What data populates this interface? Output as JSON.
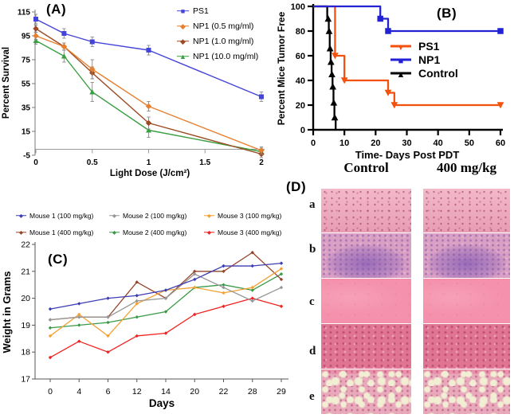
{
  "panel_labels": {
    "a": "(A)",
    "b": "(B)",
    "c": "(C)",
    "d": "(D)"
  },
  "chart_data": [
    {
      "id": "A",
      "type": "line",
      "xlabel": "Light Dose (J/cm²)",
      "ylabel": "Percent Survival",
      "x": [
        0,
        0.25,
        0.5,
        1,
        2
      ],
      "xticks": [
        0,
        0.5,
        1,
        1.5,
        2
      ],
      "xtick_labels": [
        "0",
        "0.5",
        "1",
        "1.5",
        "2"
      ],
      "yticks": [
        -5,
        15,
        35,
        55,
        75,
        95,
        115
      ],
      "xlim": [
        0,
        2
      ],
      "ylim": [
        -5,
        115
      ],
      "legend_position": "top-right",
      "grid": false,
      "series": [
        {
          "name": "PS1",
          "color": "#4444d8",
          "marker": "square",
          "values": [
            109,
            97,
            90,
            83,
            44
          ],
          "err": [
            4,
            4,
            4,
            4,
            4
          ]
        },
        {
          "name": "NP1 (0.5 mg/ml)",
          "color": "#e87f2e",
          "marker": "diamond",
          "values": [
            95,
            86,
            67,
            36,
            -1
          ],
          "err": [
            3,
            3,
            8,
            4,
            3
          ]
        },
        {
          "name": "NP1 (1.0 mg/ml)",
          "color": "#9c4a22",
          "marker": "diamond",
          "values": [
            101,
            86,
            64,
            22,
            -4
          ],
          "err": [
            3,
            3,
            5,
            5,
            3
          ]
        },
        {
          "name": "NP1 (10.0 mg/ml)",
          "color": "#3a9e42",
          "marker": "tri-up",
          "values": [
            91,
            78,
            48,
            16,
            -2
          ],
          "err": [
            3,
            5,
            8,
            6,
            3
          ]
        }
      ]
    },
    {
      "id": "B",
      "type": "step",
      "xlabel": "Time- Days Post PDT",
      "ylabel": "Percent Mice Tumor Free",
      "xticks": [
        0,
        10,
        20,
        30,
        40,
        50,
        60
      ],
      "yticks": [
        0,
        20,
        40,
        60,
        80,
        100
      ],
      "xlim": [
        0,
        60
      ],
      "ylim": [
        0,
        100
      ],
      "legend_position": "center",
      "grid": false,
      "series": [
        {
          "name": "PS1",
          "color": "#f4520c",
          "marker": "tri-down",
          "points": [
            [
              0,
              100
            ],
            [
              7,
              100
            ],
            [
              7,
              60
            ],
            [
              10,
              60
            ],
            [
              10,
              40
            ],
            [
              24,
              40
            ],
            [
              24,
              30
            ],
            [
              26,
              30
            ],
            [
              26,
              20
            ],
            [
              60,
              20
            ]
          ],
          "marker_points": [
            [
              7,
              60
            ],
            [
              10,
              40
            ],
            [
              24,
              30
            ],
            [
              26,
              20
            ],
            [
              60,
              20
            ]
          ]
        },
        {
          "name": "NP1",
          "color": "#2222d4",
          "marker": "square",
          "points": [
            [
              0,
              100
            ],
            [
              21.5,
              100
            ],
            [
              21.5,
              90
            ],
            [
              24,
              90
            ],
            [
              24,
              80
            ],
            [
              60,
              80
            ]
          ],
          "marker_points": [
            [
              21.5,
              90
            ],
            [
              24,
              80
            ],
            [
              60,
              80
            ]
          ]
        },
        {
          "name": "Control",
          "color": "#000000",
          "marker": "tri-up",
          "points": [
            [
              0,
              100
            ],
            [
              4.5,
              100
            ],
            [
              4.5,
              90
            ],
            [
              5,
              90
            ],
            [
              5,
              80
            ],
            [
              5.3,
              80
            ],
            [
              5.3,
              66
            ],
            [
              5.6,
              66
            ],
            [
              5.6,
              55
            ],
            [
              5.9,
              55
            ],
            [
              5.9,
              45
            ],
            [
              6.2,
              45
            ],
            [
              6.2,
              35
            ],
            [
              6.5,
              35
            ],
            [
              6.5,
              22
            ],
            [
              6.8,
              22
            ],
            [
              6.8,
              10
            ],
            [
              7.2,
              10
            ],
            [
              7.2,
              0
            ]
          ],
          "marker_points": [
            [
              4.8,
              90
            ],
            [
              5.1,
              80
            ],
            [
              5.4,
              66
            ],
            [
              5.7,
              55
            ],
            [
              6.0,
              45
            ],
            [
              6.3,
              35
            ],
            [
              6.6,
              22
            ],
            [
              6.9,
              10
            ]
          ]
        }
      ]
    },
    {
      "id": "C",
      "type": "line",
      "xlabel": "Days",
      "ylabel": "Weight in Grams",
      "categories": [
        "0",
        "4",
        "6",
        "12",
        "14",
        "20",
        "22",
        "28",
        "29"
      ],
      "yticks": [
        17,
        18,
        19,
        20,
        21,
        22
      ],
      "ylim": [
        17,
        22
      ],
      "legend_position": "top",
      "grid": false,
      "series": [
        {
          "name": "Mouse 1 (100 mg/kg)",
          "color": "#3c3cb4",
          "values": [
            19.6,
            19.8,
            20.0,
            20.1,
            20.3,
            20.7,
            21.2,
            21.2,
            21.3
          ]
        },
        {
          "name": "Mouse 2 (100 mg/kg)",
          "color": "#969696",
          "values": [
            19.2,
            19.3,
            19.3,
            19.9,
            20.0,
            20.9,
            20.4,
            19.9,
            20.4
          ]
        },
        {
          "name": "Mouse 3 (100 mg/kg)",
          "color": "#f5a033",
          "values": [
            18.6,
            19.4,
            18.6,
            19.8,
            20.3,
            20.4,
            20.2,
            20.4,
            21.1
          ]
        },
        {
          "name": "Mouse 1 (400 mg/kg)",
          "color": "#95452a",
          "values": [
            19.2,
            19.3,
            19.3,
            20.6,
            20.0,
            21.0,
            21.0,
            21.7,
            20.7
          ]
        },
        {
          "name": "Mouse 2 (400 mg/kg)",
          "color": "#3a9a48",
          "values": [
            18.9,
            19.0,
            19.1,
            19.3,
            19.5,
            20.4,
            20.5,
            20.3,
            20.9
          ]
        },
        {
          "name": "Mouse 3 (400 mg/kg)",
          "color": "#f02222",
          "values": [
            17.8,
            18.4,
            18.0,
            18.6,
            18.7,
            19.4,
            19.7,
            20.0,
            19.7
          ]
        }
      ]
    }
  ],
  "panel_d": {
    "column_headers": [
      "Control",
      "400 mg/kg"
    ],
    "row_labels": [
      "a",
      "b",
      "c",
      "d",
      "e"
    ],
    "tissue_colors": {
      "a": "#f0a9bd",
      "b": "#d9a0c4",
      "c": "#f591ac",
      "d": "#df7493",
      "e": "#e8a9bb"
    }
  }
}
